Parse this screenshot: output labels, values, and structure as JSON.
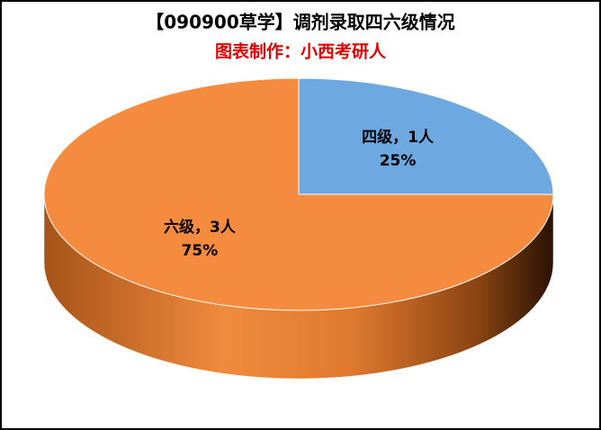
{
  "chart_data": {
    "type": "pie3d",
    "title": "【090900草学】调剂录取四六级情况",
    "subtitle": "图表制作：小西考研人",
    "categories": [
      "四级，1人",
      "六级，3人"
    ],
    "values": [
      25,
      75
    ],
    "value_labels": [
      "25%",
      "75%"
    ],
    "colors": [
      "#6ea8e0",
      "#f58b3f"
    ]
  }
}
